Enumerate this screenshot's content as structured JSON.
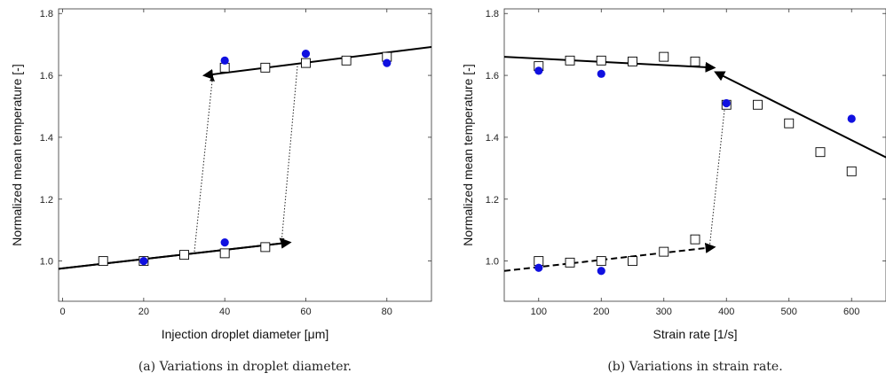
{
  "chart_data": [
    {
      "type": "scatter",
      "caption": "(a) Variations in droplet diameter.",
      "xlabel": "Injection droplet diameter [μm]",
      "ylabel": "Normalized mean temperature [-]",
      "xlim": [
        -1,
        91
      ],
      "ylim": [
        0.87,
        1.815
      ],
      "xticks": [
        0,
        20,
        40,
        60,
        80
      ],
      "yticks": [
        1.0,
        1.2,
        1.4,
        1.6,
        1.8
      ],
      "series": [
        {
          "marker": "open-square",
          "x": [
            10,
            20,
            30,
            40,
            50,
            60,
            70,
            80,
            40,
            50
          ],
          "y": [
            1.0,
            1.0,
            1.02,
            1.025,
            1.045,
            1.64,
            1.648,
            1.66,
            1.625,
            1.625
          ]
        },
        {
          "marker": "filled-circle",
          "color": "#1010e0",
          "x": [
            20,
            40,
            40,
            60,
            80
          ],
          "y": [
            1.0,
            1.06,
            1.648,
            1.67,
            1.64
          ]
        }
      ],
      "trend_lines": [
        {
          "style": "solid",
          "arrow": true,
          "x": [
            -1,
            56
          ],
          "y": [
            0.975,
            1.06
          ]
        },
        {
          "style": "solid",
          "arrow": true,
          "x": [
            91,
            35
          ],
          "y": [
            1.692,
            1.6
          ]
        },
        {
          "style": "solid",
          "arrow": false,
          "x": [
            -1,
            56
          ],
          "y": [
            0.975,
            1.06
          ]
        }
      ],
      "transitions": [
        {
          "x": [
            32.5,
            37
          ],
          "y": [
            1.03,
            1.595
          ]
        },
        {
          "x": [
            58,
            54
          ],
          "y": [
            1.64,
            1.06
          ]
        }
      ]
    },
    {
      "type": "scatter",
      "caption": "(b) Variations in strain rate.",
      "xlabel": "Strain rate [1/s]",
      "ylabel": "Normalized mean temperature [-]",
      "xlim": [
        45,
        655
      ],
      "ylim": [
        0.87,
        1.815
      ],
      "xticks": [
        100,
        200,
        300,
        400,
        500,
        600
      ],
      "yticks": [
        1.0,
        1.2,
        1.4,
        1.6,
        1.8
      ],
      "series": [
        {
          "marker": "open-square",
          "x": [
            100,
            150,
            200,
            250,
            300,
            350,
            100,
            150,
            200,
            250,
            300,
            350,
            400,
            450,
            500,
            550,
            600
          ],
          "y": [
            1.63,
            1.648,
            1.648,
            1.645,
            1.66,
            1.645,
            1.0,
            0.995,
            1.0,
            1.0,
            1.03,
            1.07,
            1.505,
            1.505,
            1.445,
            1.352,
            1.29
          ]
        },
        {
          "marker": "filled-circle",
          "color": "#1010e0",
          "x": [
            100,
            200,
            400,
            600,
            100,
            200
          ],
          "y": [
            1.615,
            1.605,
            1.51,
            1.46,
            0.978,
            0.968
          ]
        }
      ],
      "trend_lines": [
        {
          "style": "solid",
          "arrow": true,
          "x": [
            45,
            380
          ],
          "y": [
            1.66,
            1.625
          ]
        },
        {
          "style": "solid",
          "arrow": true,
          "x": [
            655,
            383
          ],
          "y": [
            1.335,
            1.61
          ]
        },
        {
          "style": "dashed",
          "arrow": true,
          "x": [
            45,
            380
          ],
          "y": [
            0.968,
            1.045
          ]
        }
      ],
      "transitions": [
        {
          "x": [
            373,
            398
          ],
          "y": [
            1.045,
            1.51
          ]
        }
      ]
    }
  ]
}
